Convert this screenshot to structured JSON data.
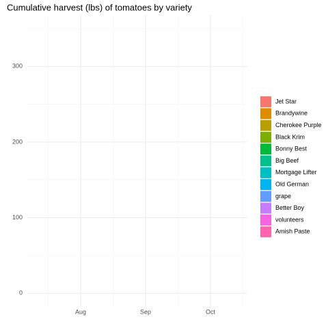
{
  "chart_data": {
    "type": "area",
    "title": "Cumulative harvest (lbs) of tomatoes by variety",
    "categories": [
      "Aug",
      "Sep",
      "Oct"
    ],
    "ylim": [
      -17,
      368
    ],
    "yticks": [
      0,
      100,
      200,
      300
    ],
    "grid": true,
    "legend": "right",
    "series": [
      {
        "name": "Jet Star",
        "color": "#F8766D"
      },
      {
        "name": "Brandywine",
        "color": "#DE8C00"
      },
      {
        "name": "Cherokee Purple",
        "color": "#B79F00"
      },
      {
        "name": "Black Krim",
        "color": "#7CAE00"
      },
      {
        "name": "Bonny Best",
        "color": "#00BA38"
      },
      {
        "name": "Big Beef",
        "color": "#00C08B"
      },
      {
        "name": "Mortgage Lifter",
        "color": "#00BFC4"
      },
      {
        "name": "Old German",
        "color": "#00B4F0"
      },
      {
        "name": "grape",
        "color": "#619CFF"
      },
      {
        "name": "Better Boy",
        "color": "#C77CFF"
      },
      {
        "name": "volunteers",
        "color": "#F564E3"
      },
      {
        "name": "Amish Paste",
        "color": "#FF64B0"
      }
    ]
  }
}
